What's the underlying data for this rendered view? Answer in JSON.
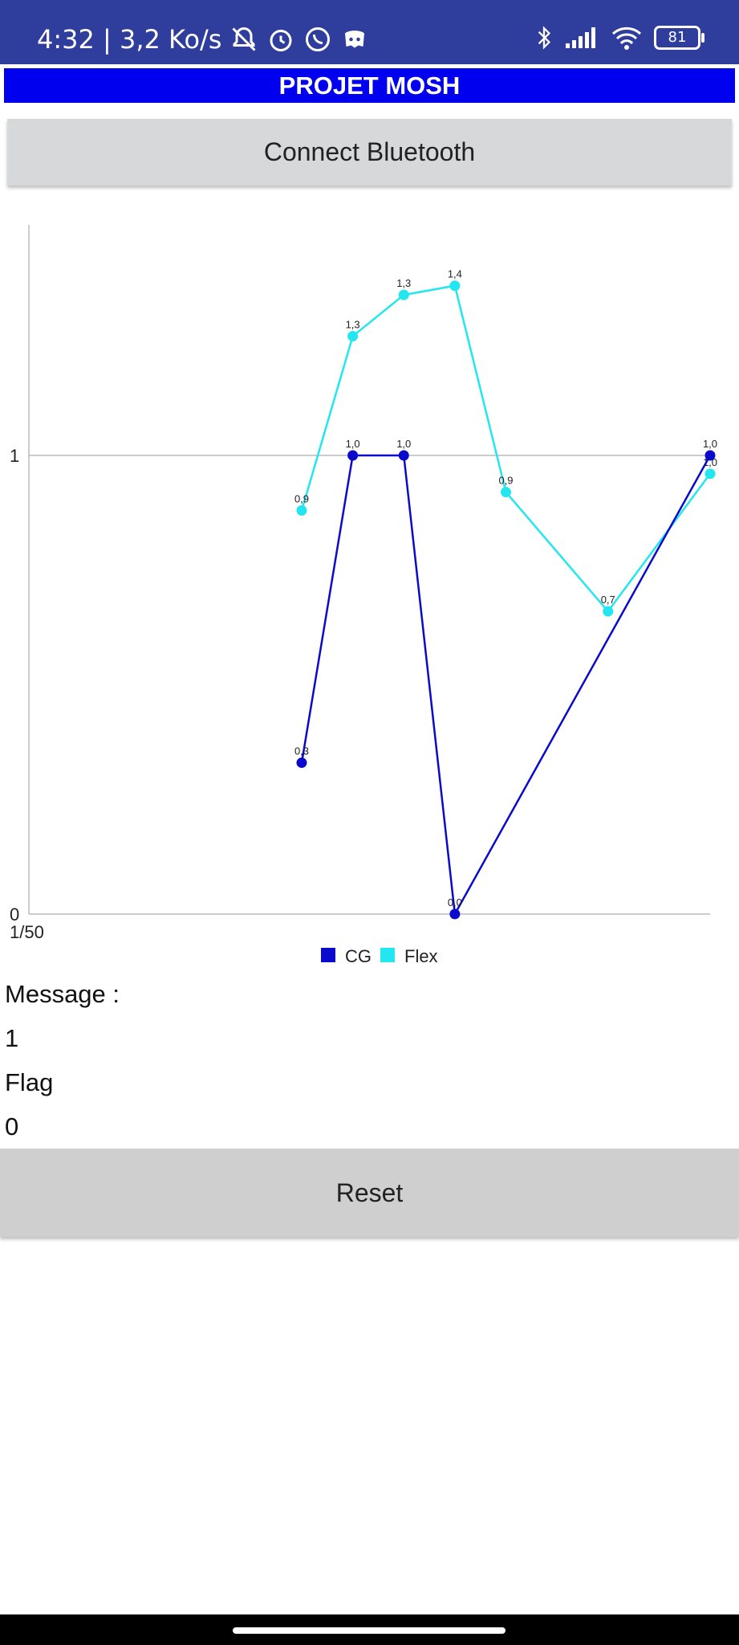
{
  "status_bar": {
    "time_info": "4:32 | 3,2 Ko/s",
    "battery": "81",
    "icons": [
      "bell-off-icon",
      "alarm-icon",
      "whatsapp-icon",
      "discord-icon",
      "bluetooth-icon",
      "signal-icon",
      "wifi-icon",
      "battery-icon"
    ]
  },
  "app": {
    "title": "PROJET MOSH",
    "connect_button": "Connect Bluetooth",
    "reset_button": "Reset"
  },
  "fields": {
    "message_label": "Message :",
    "message_value": "1",
    "flag_label": "Flag",
    "flag_value": "0"
  },
  "chart_data": {
    "type": "line",
    "y_ticks": [
      "0",
      "1"
    ],
    "ylim": [
      0,
      1.5
    ],
    "x_tick_label": "1/50",
    "legend_position": "bottom",
    "colors": {
      "CG": "#0a0acc",
      "Flex": "#22e6f0"
    },
    "series": [
      {
        "name": "CG",
        "x": [
          1,
          2,
          3,
          4,
          9
        ],
        "values": [
          0.33,
          1.0,
          1.0,
          0.0,
          1.0
        ],
        "labels": [
          "0,3",
          "1,0",
          "1,0",
          "0,0",
          "1,0"
        ]
      },
      {
        "name": "Flex",
        "x": [
          1,
          2,
          3,
          4,
          5,
          7,
          9
        ],
        "values": [
          0.88,
          1.26,
          1.35,
          1.37,
          0.92,
          0.66,
          0.96
        ],
        "labels": [
          "0,9",
          "1,3",
          "1,3",
          "1,4",
          "0,9",
          "0,7",
          "1,0"
        ]
      }
    ]
  }
}
